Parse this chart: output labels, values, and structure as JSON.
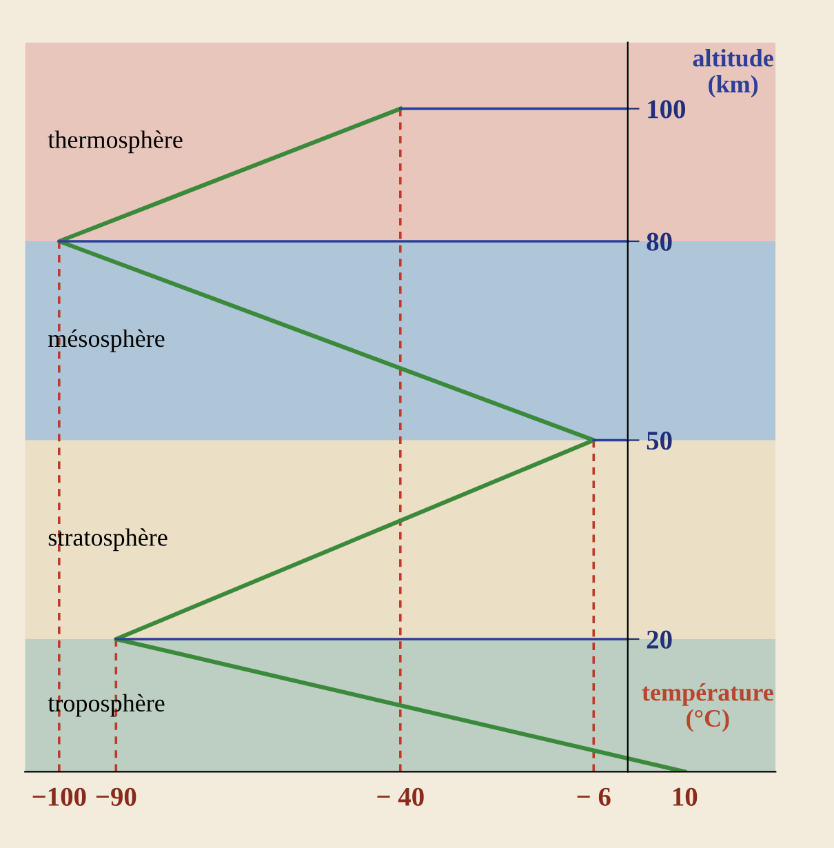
{
  "chart_data": {
    "type": "line",
    "xlabel": "température\n(°C)",
    "ylabel": "altitude\n(km)",
    "xlim": [
      -106,
      26
    ],
    "ylim": [
      0,
      110
    ],
    "xticks": [
      {
        "value": -100,
        "label": "−100"
      },
      {
        "value": -90,
        "label": "−90"
      },
      {
        "value": -40,
        "label": "− 40"
      },
      {
        "value": -6,
        "label": "− 6"
      },
      10
    ],
    "yticks": [
      20,
      50,
      80,
      100
    ],
    "grid": false,
    "legend": false,
    "bands": [
      {
        "axis": "y",
        "from": 0,
        "to": 20,
        "label": "troposphère",
        "color": "#bccfc2"
      },
      {
        "axis": "y",
        "from": 20,
        "to": 50,
        "label": "stratosphère",
        "color": "#ebdfc6"
      },
      {
        "axis": "y",
        "from": 50,
        "to": 80,
        "label": "mésosphère",
        "color": "#aec6d8"
      },
      {
        "axis": "y",
        "from": 80,
        "to": 110,
        "label": "thermosphère",
        "color": "#e9c6bc"
      }
    ],
    "series": [
      {
        "color": "#3b8a3b",
        "x": [
          10,
          -90,
          -6,
          -100,
          -40
        ],
        "values": [
          0,
          20,
          50,
          80,
          100
        ]
      },
      {
        "color": "#2b3f99",
        "x": [
          -90,
          0
        ],
        "values": [
          20,
          20
        ]
      },
      {
        "color": "#2b3f99",
        "x": [
          -6,
          0
        ],
        "values": [
          50,
          50
        ]
      },
      {
        "color": "#2b3f99",
        "x": [
          -100,
          0
        ],
        "values": [
          80,
          80
        ]
      },
      {
        "color": "#2b3f99",
        "x": [
          -40,
          0
        ],
        "values": [
          100,
          100
        ]
      },
      {
        "color": "#c0392b",
        "x": [
          -100,
          -100
        ],
        "values": [
          0,
          80
        ],
        "line_style": "dashed"
      },
      {
        "color": "#c0392b",
        "x": [
          -90,
          -90
        ],
        "values": [
          0,
          20
        ],
        "line_style": "dashed"
      },
      {
        "color": "#c0392b",
        "x": [
          -40,
          -40
        ],
        "values": [
          0,
          100
        ],
        "line_style": "dashed"
      },
      {
        "color": "#c0392b",
        "x": [
          -6,
          -6
        ],
        "values": [
          0,
          50
        ],
        "line_style": "dashed"
      }
    ]
  }
}
